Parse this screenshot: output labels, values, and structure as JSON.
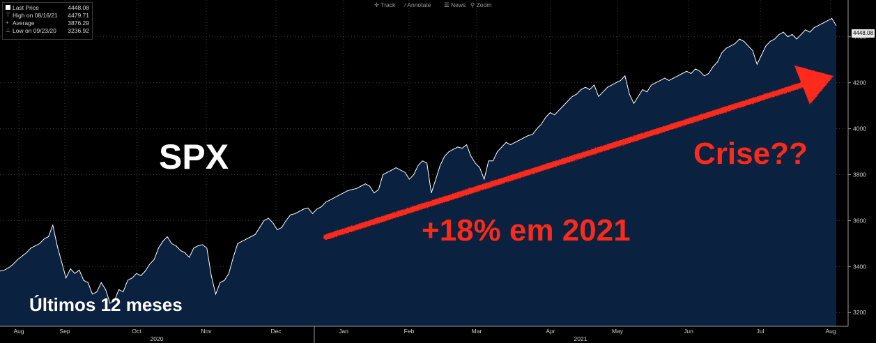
{
  "chart_data": {
    "type": "area",
    "title": "SPX",
    "subtitle": "Últimos 12 meses",
    "x_axis": {
      "months": [
        "Aug",
        "Sep",
        "Oct",
        "Nov",
        "Dec",
        "Jan",
        "Feb",
        "Mar",
        "Apr",
        "May",
        "Jun",
        "Jul",
        "Aug"
      ],
      "years": [
        "2020",
        "2021"
      ]
    },
    "y_axis": {
      "ticks": [
        3200,
        3400,
        3600,
        3800,
        4000,
        4200,
        4400
      ],
      "ylim": [
        3140,
        4560
      ]
    },
    "series": [
      {
        "values": [
          3380,
          3385,
          3395,
          3410,
          3430,
          3445,
          3460,
          3480,
          3490,
          3500,
          3520,
          3530,
          3580,
          3490,
          3420,
          3350,
          3390,
          3370,
          3385,
          3340,
          3330,
          3280,
          3290,
          3330,
          3300,
          3240,
          3250,
          3300,
          3290,
          3340,
          3350,
          3370,
          3360,
          3380,
          3410,
          3430,
          3480,
          3510,
          3530,
          3500,
          3490,
          3470,
          3460,
          3440,
          3480,
          3490,
          3495,
          3480,
          3360,
          3280,
          3330,
          3340,
          3370,
          3440,
          3500,
          3510,
          3520,
          3530,
          3540,
          3570,
          3600,
          3610,
          3590,
          3560,
          3570,
          3600,
          3625,
          3630,
          3640,
          3650,
          3655,
          3630,
          3650,
          3660,
          3680,
          3690,
          3700,
          3710,
          3720,
          3730,
          3735,
          3740,
          3750,
          3760,
          3750,
          3720,
          3735,
          3800,
          3810,
          3820,
          3830,
          3820,
          3810,
          3780,
          3800,
          3840,
          3860,
          3850,
          3720,
          3780,
          3840,
          3880,
          3900,
          3910,
          3920,
          3915,
          3930,
          3880,
          3850,
          3830,
          3780,
          3860,
          3860,
          3900,
          3920,
          3940,
          3930,
          3940,
          3950,
          3960,
          3970,
          3975,
          4000,
          4020,
          4050,
          4070,
          4060,
          4080,
          4100,
          4120,
          4140,
          4150,
          4170,
          4180,
          4170,
          4190,
          4140,
          4160,
          4180,
          4190,
          4200,
          4210,
          4230,
          4150,
          4110,
          4140,
          4170,
          4160,
          4190,
          4200,
          4210,
          4220,
          4210,
          4220,
          4230,
          4240,
          4250,
          4240,
          4260,
          4250,
          4230,
          4240,
          4270,
          4290,
          4330,
          4350,
          4360,
          4370,
          4390,
          4380,
          4360,
          4340,
          4280,
          4320,
          4360,
          4380,
          4390,
          4410,
          4420,
          4400,
          4410,
          4390,
          4410,
          4430,
          4420,
          4440,
          4450,
          4460,
          4470,
          4480,
          4448.08
        ]
      }
    ]
  },
  "legend": {
    "last_price_label": "Last Price",
    "last_price_value": "4448.08",
    "high_label": "High on 08/16/21",
    "high_value": "4479.71",
    "average_label": "Average",
    "average_value": "3876.29",
    "low_label": "Low on 09/23/20",
    "low_value": "3236.92"
  },
  "toolbar": {
    "track": "Track",
    "annotate": "Annotate",
    "news": "News",
    "zoom": "Zoom"
  },
  "price_tag": "4448.08",
  "annotations": {
    "growth": "+18% em 2021",
    "crisis": "Crise??"
  },
  "colors": {
    "background": "#000000",
    "area": "#0b2140",
    "line": "#ffffff",
    "annotation": "#ff2a1a"
  }
}
